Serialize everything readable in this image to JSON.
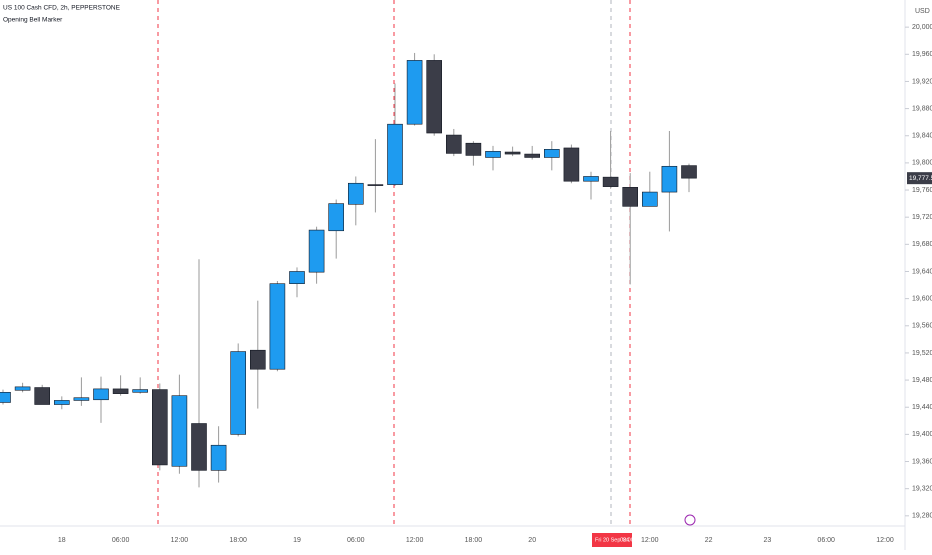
{
  "chart_data": {
    "type": "candlestick",
    "title": "US 100 Cash CFD, 2h, PEPPERSTONE",
    "indicator": "Opening Bell Marker",
    "currency": "USD",
    "categories": [
      null,
      null,
      null,
      "18",
      null,
      null,
      "06:00",
      null,
      null,
      "12:00",
      null,
      null,
      "18:00",
      null,
      null,
      "19",
      null,
      null,
      "06:00",
      null,
      null,
      "12:00",
      null,
      null,
      "18:00",
      null,
      null,
      "20",
      null,
      null,
      null,
      null,
      null,
      "12:00",
      null,
      null,
      "22",
      null,
      null,
      "23",
      null,
      null,
      "06:00",
      null,
      null,
      "12:00"
    ],
    "open": [
      19447,
      19465,
      19469,
      19444,
      19450,
      19451,
      19467,
      19462,
      19466,
      19353,
      19416,
      19347,
      19400,
      19524,
      19496,
      19622,
      19639,
      19700,
      19739,
      19768,
      19768,
      19857,
      19951,
      19841,
      19829,
      19808,
      19816,
      19813,
      19808,
      19822,
      19773,
      19779,
      19764,
      19736,
      19757,
      19796,
      null,
      null,
      null,
      null,
      null,
      null,
      null,
      null,
      null,
      null
    ],
    "high": [
      19466,
      19476,
      19473,
      19456,
      19484,
      19485,
      19487,
      19484,
      19475,
      19488,
      19658,
      19412,
      19534,
      19597,
      19626,
      19646,
      19706,
      19746,
      19780,
      19835,
      19917,
      19962,
      19960,
      19850,
      19832,
      19825,
      19824,
      19825,
      19832,
      19827,
      19787,
      19847,
      19785,
      19787,
      19847,
      19799,
      null,
      null,
      null,
      null,
      null,
      null,
      null,
      null,
      null,
      null
    ],
    "low": [
      19444,
      19462,
      19444,
      19437,
      19442,
      19417,
      19457,
      19460,
      19347,
      19342,
      19322,
      19329,
      19397,
      19438,
      19493,
      19602,
      19622,
      19659,
      19708,
      19727,
      19766,
      19855,
      19840,
      19810,
      19796,
      19789,
      19810,
      19805,
      19789,
      19770,
      19746,
      19762,
      19621,
      19736,
      19699,
      19757,
      null,
      null,
      null,
      null,
      null,
      null,
      null,
      null,
      null,
      null
    ],
    "close": [
      19462,
      19470,
      19444,
      19450,
      19454,
      19467,
      19460,
      19466,
      19355,
      19457,
      19347,
      19384,
      19522,
      19496,
      19622,
      19640,
      19701,
      19740,
      19770,
      19767,
      19857,
      19951,
      19844,
      19814,
      19811,
      19817,
      19813,
      19808,
      19820,
      19773,
      19780,
      19765,
      19736,
      19757,
      19795,
      19777.5,
      null,
      null,
      null,
      null,
      null,
      null,
      null,
      null,
      null,
      null
    ],
    "last_label": "19,777.5",
    "crosshair_date": "Fri 20 Sep '24",
    "crosshair_time": "08:00",
    "up_color": "#1e9bf0",
    "down_color": "#3b3d48",
    "wick_color": "#9a9a9a",
    "ylim": [
      19265,
      20040
    ],
    "yticks": [
      {
        "value": 19280,
        "label": "19,280.0"
      },
      {
        "value": 19320,
        "label": "19,320.0"
      },
      {
        "value": 19360,
        "label": "19,360.0"
      },
      {
        "value": 19400,
        "label": "19,400.0"
      },
      {
        "value": 19440,
        "label": "19,440.0"
      },
      {
        "value": 19480,
        "label": "19,480.0"
      },
      {
        "value": 19520,
        "label": "19,520.0"
      },
      {
        "value": 19560,
        "label": "19,560.0"
      },
      {
        "value": 19600,
        "label": "19,600.0"
      },
      {
        "value": 19640,
        "label": "19,640.0"
      },
      {
        "value": 19680,
        "label": "19,680.0"
      },
      {
        "value": 19720,
        "label": "19,720.0"
      },
      {
        "value": 19760,
        "label": "19,760.0"
      },
      {
        "value": 19800,
        "label": "19,800.0"
      },
      {
        "value": 19840,
        "label": "19,840.0"
      },
      {
        "value": 19880,
        "label": "19,880.0"
      },
      {
        "value": 19920,
        "label": "19,920.0"
      },
      {
        "value": 19960,
        "label": "19,960.0"
      },
      {
        "value": 20000,
        "label": "20,000.0"
      }
    ]
  }
}
